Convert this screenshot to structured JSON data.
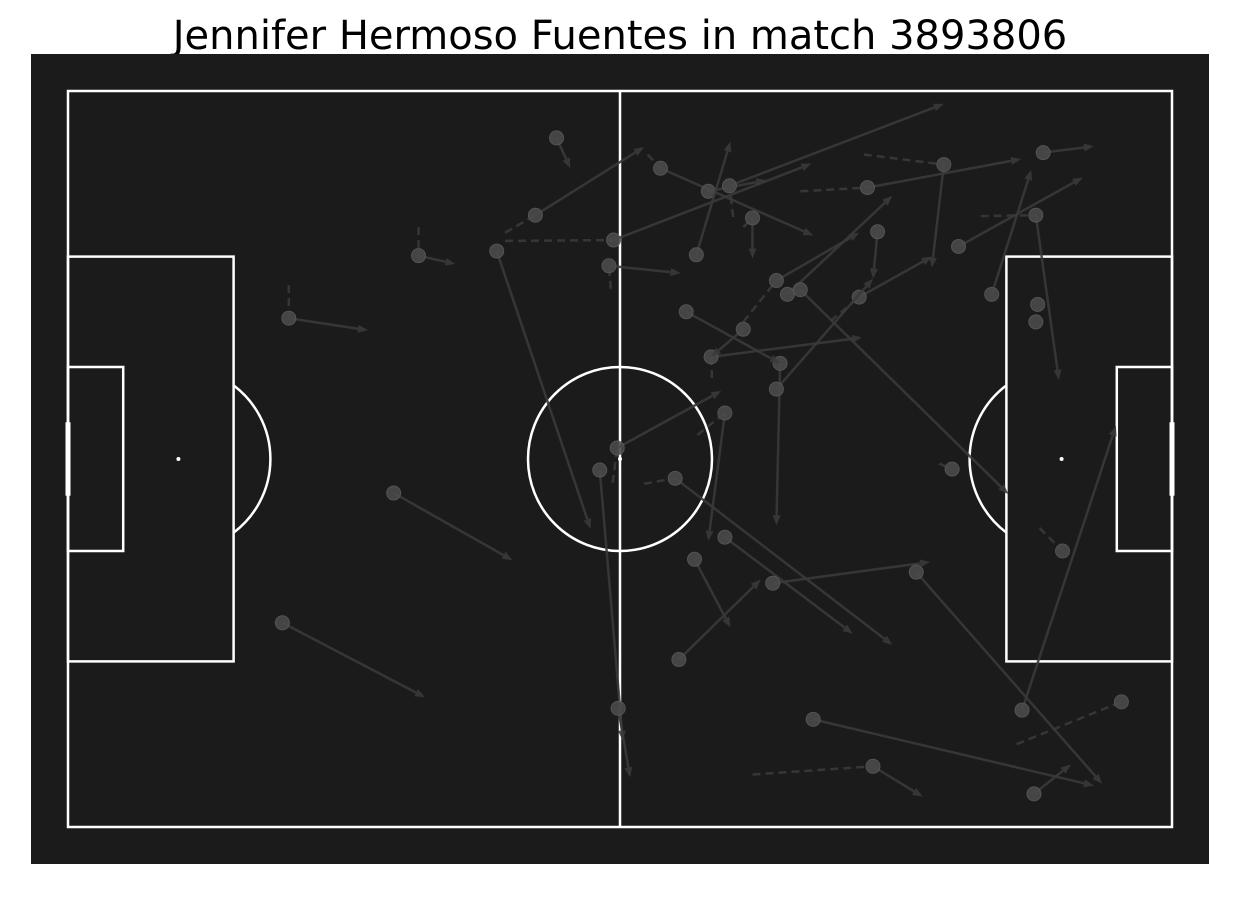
{
  "chart_data": {
    "type": "pass-map",
    "title": "Jennifer Hermoso Fuentes in match 3893806",
    "pitch": {
      "length": 120,
      "width": 80
    },
    "colors": {
      "pitch": "#1b1b1b",
      "lines": "#ffffff",
      "marks": "#3a3a3a",
      "title": "#000000"
    },
    "events": [
      {
        "x": 53.1,
        "y": 5.1,
        "end_x": 54.6,
        "end_y": 8.4,
        "solid": true,
        "carry_x": 53.1,
        "carry_y": 5.1
      },
      {
        "x": 38.1,
        "y": 17.9,
        "end_x": 42.1,
        "end_y": 18.8,
        "solid": true,
        "carry_x": 38.1,
        "carry_y": 14.8
      },
      {
        "x": 35.4,
        "y": 43.7,
        "end_x": 48.3,
        "end_y": 51.0,
        "solid": true,
        "carry_x": 35.4,
        "carry_y": 43.7
      },
      {
        "x": 46.6,
        "y": 17.4,
        "end_x": 56.8,
        "end_y": 47.6,
        "solid": true,
        "carry_x": 46.6,
        "carry_y": 17.4
      },
      {
        "x": 50.8,
        "y": 13.5,
        "end_x": 62.6,
        "end_y": 6.1,
        "solid": true,
        "carry_x": 47.5,
        "carry_y": 15.4
      },
      {
        "x": 59.3,
        "y": 16.2,
        "end_x": 80.8,
        "end_y": 7.9,
        "solid": true,
        "carry_x": 47.5,
        "carry_y": 16.3
      },
      {
        "x": 58.8,
        "y": 19.0,
        "end_x": 66.6,
        "end_y": 19.8,
        "solid": true,
        "carry_x": 59.0,
        "carry_y": 21.5
      },
      {
        "x": 64.4,
        "y": 8.4,
        "end_x": 81.0,
        "end_y": 15.7,
        "solid": true,
        "carry_x": 63.0,
        "carry_y": 6.9
      },
      {
        "x": 69.6,
        "y": 10.9,
        "end_x": 75.9,
        "end_y": 9.7,
        "solid": true,
        "carry_x": 69.6,
        "carry_y": 10.9
      },
      {
        "x": 71.9,
        "y": 10.3,
        "end_x": 95.2,
        "end_y": 1.4,
        "solid": true,
        "carry_x": 72.3,
        "carry_y": 13.7
      },
      {
        "x": 74.4,
        "y": 13.8,
        "end_x": 74.4,
        "end_y": 18.2,
        "solid": true,
        "carry_x": 73.4,
        "carry_y": 14.8
      },
      {
        "x": 68.3,
        "y": 17.8,
        "end_x": 72.0,
        "end_y": 5.5,
        "solid": true,
        "carry_x": 68.3,
        "carry_y": 17.8
      },
      {
        "x": 77.0,
        "y": 20.6,
        "end_x": 86.0,
        "end_y": 15.4,
        "solid": true,
        "carry_x": 73.4,
        "carry_y": 25.1
      },
      {
        "x": 78.2,
        "y": 22.1,
        "end_x": 89.6,
        "end_y": 11.4,
        "solid": true,
        "carry_x": 78.2,
        "carry_y": 22.1
      },
      {
        "x": 79.6,
        "y": 21.6,
        "end_x": 102.2,
        "end_y": 43.8,
        "solid": true,
        "carry_x": 79.6,
        "carry_y": 21.6
      },
      {
        "x": 95.2,
        "y": 8.0,
        "end_x": 93.9,
        "end_y": 19.2,
        "solid": true,
        "carry_x": 86.5,
        "carry_y": 6.9
      },
      {
        "x": 86.9,
        "y": 10.5,
        "end_x": 103.6,
        "end_y": 7.4,
        "solid": true,
        "carry_x": 79.6,
        "carry_y": 10.9
      },
      {
        "x": 106.0,
        "y": 6.7,
        "end_x": 111.5,
        "end_y": 6.0,
        "solid": true,
        "carry_x": 106.0,
        "carry_y": 6.7
      },
      {
        "x": 88.0,
        "y": 15.3,
        "end_x": 87.5,
        "end_y": 20.4,
        "solid": true,
        "carry_x": 88.0,
        "carry_y": 15.3
      },
      {
        "x": 86.0,
        "y": 22.4,
        "end_x": 93.9,
        "end_y": 18.0,
        "solid": true,
        "carry_x": 82.9,
        "carry_y": 25.0
      },
      {
        "x": 96.8,
        "y": 16.9,
        "end_x": 110.3,
        "end_y": 9.4,
        "solid": true,
        "carry_x": 96.8,
        "carry_y": 16.9
      },
      {
        "x": 105.2,
        "y": 13.5,
        "end_x": 107.7,
        "end_y": 31.4,
        "solid": true,
        "carry_x": 99.2,
        "carry_y": 13.6
      },
      {
        "x": 100.4,
        "y": 22.1,
        "end_x": 104.7,
        "end_y": 8.6,
        "solid": true,
        "carry_x": 100.4,
        "carry_y": 22.1
      },
      {
        "x": 69.9,
        "y": 28.9,
        "end_x": 86.3,
        "end_y": 26.8,
        "solid": true,
        "carry_x": 70.0,
        "carry_y": 31.2
      },
      {
        "x": 77.4,
        "y": 29.6,
        "end_x": 77.0,
        "end_y": 47.2,
        "solid": true,
        "carry_x": 77.4,
        "carry_y": 29.6
      },
      {
        "x": 73.4,
        "y": 25.9,
        "end_x": 69.9,
        "end_y": 28.9,
        "solid": false,
        "carry_x": 73.4,
        "carry_y": 25.9
      },
      {
        "x": 67.2,
        "y": 24.0,
        "end_x": 77.4,
        "end_y": 29.6,
        "solid": false,
        "carry_x": 67.2,
        "carry_y": 24.0
      },
      {
        "x": 77.0,
        "y": 32.4,
        "end_x": 87.5,
        "end_y": 20.4,
        "solid": true,
        "carry_x": 77.0,
        "carry_y": 32.4
      },
      {
        "x": 59.7,
        "y": 38.8,
        "end_x": 71.0,
        "end_y": 32.6,
        "solid": true,
        "carry_x": 59.2,
        "carry_y": 42.6
      },
      {
        "x": 71.4,
        "y": 35.0,
        "end_x": 69.6,
        "end_y": 48.9,
        "solid": true,
        "carry_x": 68.4,
        "carry_y": 37.4
      },
      {
        "x": 57.8,
        "y": 41.2,
        "end_x": 60.3,
        "end_y": 70.6,
        "solid": true,
        "carry_x": 57.8,
        "carry_y": 41.2
      },
      {
        "x": 66.0,
        "y": 42.1,
        "end_x": 89.6,
        "end_y": 60.2,
        "solid": true,
        "carry_x": 62.6,
        "carry_y": 42.7
      },
      {
        "x": 71.4,
        "y": 48.5,
        "end_x": 85.3,
        "end_y": 59.0,
        "solid": true,
        "carry_x": 71.4,
        "carry_y": 48.5
      },
      {
        "x": 68.1,
        "y": 50.9,
        "end_x": 72.0,
        "end_y": 58.3,
        "solid": true,
        "carry_x": 68.1,
        "carry_y": 50.9
      },
      {
        "x": 66.4,
        "y": 61.8,
        "end_x": 75.3,
        "end_y": 53.1,
        "solid": true,
        "carry_x": 66.4,
        "carry_y": 61.8
      },
      {
        "x": 76.6,
        "y": 53.5,
        "end_x": 93.7,
        "end_y": 51.2,
        "solid": true,
        "carry_x": 76.6,
        "carry_y": 53.5
      },
      {
        "x": 92.2,
        "y": 52.3,
        "end_x": 112.4,
        "end_y": 75.3,
        "solid": true,
        "carry_x": 92.2,
        "carry_y": 52.3
      },
      {
        "x": 96.1,
        "y": 41.1,
        "end_x": 96.1,
        "end_y": 41.1,
        "solid": true,
        "carry_x": 94.7,
        "carry_y": 40.5
      },
      {
        "x": 108.1,
        "y": 50.0,
        "end_x": 108.1,
        "end_y": 50.0,
        "solid": true,
        "carry_x": 105.6,
        "carry_y": 47.5
      },
      {
        "x": 103.7,
        "y": 67.3,
        "end_x": 113.9,
        "end_y": 36.4,
        "solid": true,
        "carry_x": 103.7,
        "carry_y": 67.3
      },
      {
        "x": 114.5,
        "y": 66.4,
        "end_x": 114.5,
        "end_y": 66.4,
        "solid": true,
        "carry_x": 103.1,
        "carry_y": 71.0
      },
      {
        "x": 81.0,
        "y": 68.3,
        "end_x": 111.5,
        "end_y": 75.5,
        "solid": true,
        "carry_x": 81.0,
        "carry_y": 68.3
      },
      {
        "x": 87.5,
        "y": 73.4,
        "end_x": 92.9,
        "end_y": 76.7,
        "solid": true,
        "carry_x": 74.4,
        "carry_y": 74.3
      },
      {
        "x": 105.0,
        "y": 76.4,
        "end_x": 109.0,
        "end_y": 73.2,
        "solid": true,
        "carry_x": 105.0,
        "carry_y": 76.4
      },
      {
        "x": 59.8,
        "y": 67.1,
        "end_x": 61.1,
        "end_y": 74.6,
        "solid": true,
        "carry_x": 59.8,
        "carry_y": 67.1
      },
      {
        "x": 24.0,
        "y": 24.7,
        "end_x": 32.6,
        "end_y": 26.0,
        "solid": true,
        "carry_x": 24.0,
        "carry_y": 21.1
      },
      {
        "x": 23.3,
        "y": 57.8,
        "end_x": 38.8,
        "end_y": 65.9,
        "solid": true,
        "carry_x": 23.3,
        "carry_y": 57.8
      },
      {
        "x": 105.2,
        "y": 25.1,
        "end_x": 105.2,
        "end_y": 25.1,
        "solid": true,
        "carry_x": 105.2,
        "carry_y": 25.1
      },
      {
        "x": 105.4,
        "y": 23.2,
        "end_x": 105.4,
        "end_y": 23.2,
        "solid": true,
        "carry_x": 105.4,
        "carry_y": 23.2
      }
    ]
  }
}
